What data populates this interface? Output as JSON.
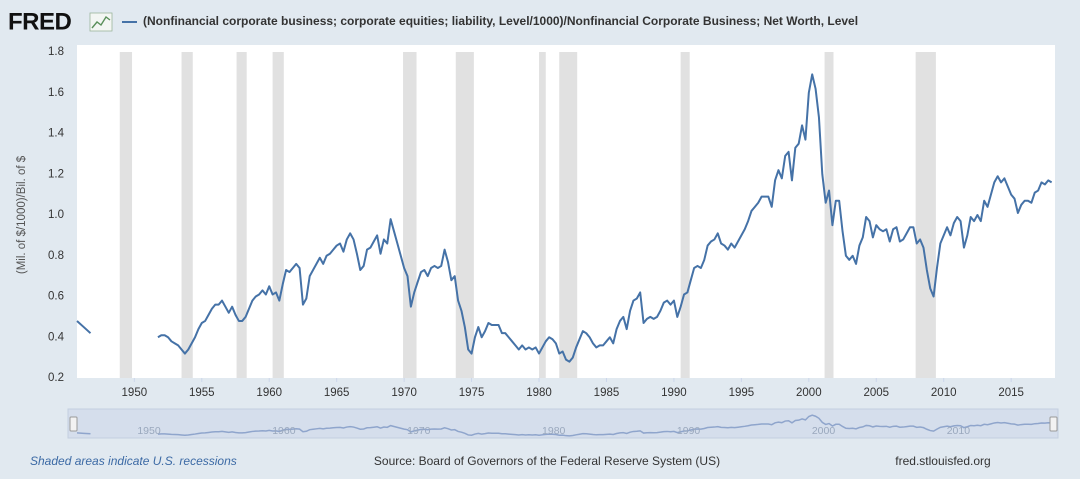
{
  "chart_data": {
    "type": "line",
    "brand": "FRED",
    "ylabel": "(Mil. of $/1000)/Bil. of $",
    "note": "Shaded areas indicate U.S. recessions",
    "source": "Source: Board of Governors of the Federal Reserve System (US)",
    "url": "fred.stlouisfed.org",
    "xlim": [
      1945.75,
      2018.25
    ],
    "ylim": [
      0.2,
      1.8
    ],
    "xticks": [
      1950,
      1955,
      1960,
      1965,
      1970,
      1975,
      1980,
      1985,
      1990,
      1995,
      2000,
      2005,
      2010,
      2015
    ],
    "yticks": [
      0.2,
      0.4,
      0.6,
      0.8,
      {
        "value": 1,
        "label": "1.0"
      },
      1.2,
      1.4,
      1.6,
      1.8
    ],
    "grid": false,
    "navigator_ticks": [
      1950,
      1960,
      1970,
      1980,
      1990,
      2000,
      2010
    ],
    "recession_color": "#e1e1e1",
    "recessions": [
      [
        1948.92,
        1949.83
      ],
      [
        1953.5,
        1954.33
      ],
      [
        1957.58,
        1958.33
      ],
      [
        1960.25,
        1961.08
      ],
      [
        1969.92,
        1970.92
      ],
      [
        1973.83,
        1975.17
      ],
      [
        1980.0,
        1980.5
      ],
      [
        1981.5,
        1982.83
      ],
      [
        1990.5,
        1991.17
      ],
      [
        2001.17,
        2001.83
      ],
      [
        2007.92,
        2009.42
      ]
    ],
    "x": [
      1945.75,
      1946.25,
      1946.75,
      1949,
      1951.75,
      1952,
      1952.25,
      1952.5,
      1952.75,
      1953,
      1953.25,
      1953.5,
      1953.75,
      1954,
      1954.25,
      1954.5,
      1954.75,
      1955,
      1955.25,
      1955.5,
      1955.75,
      1956,
      1956.25,
      1956.5,
      1956.75,
      1957,
      1957.25,
      1957.5,
      1957.75,
      1958,
      1958.25,
      1958.5,
      1958.75,
      1959,
      1959.25,
      1959.5,
      1959.75,
      1960,
      1960.25,
      1960.5,
      1960.75,
      1961,
      1961.25,
      1961.5,
      1961.75,
      1962,
      1962.25,
      1962.5,
      1962.75,
      1963,
      1963.25,
      1963.5,
      1963.75,
      1964,
      1964.25,
      1964.5,
      1964.75,
      1965,
      1965.25,
      1965.5,
      1965.75,
      1966,
      1966.25,
      1966.5,
      1966.75,
      1967,
      1967.25,
      1967.5,
      1967.75,
      1968,
      1968.25,
      1968.5,
      1968.75,
      1969,
      1969.25,
      1969.5,
      1969.75,
      1970,
      1970.25,
      1970.5,
      1970.75,
      1971,
      1971.25,
      1971.5,
      1971.75,
      1972,
      1972.25,
      1972.5,
      1972.75,
      1973,
      1973.25,
      1973.5,
      1973.75,
      1974,
      1974.25,
      1974.5,
      1974.75,
      1975,
      1975.25,
      1975.5,
      1975.75,
      1976,
      1976.25,
      1976.5,
      1976.75,
      1977,
      1977.25,
      1977.5,
      1977.75,
      1978,
      1978.25,
      1978.5,
      1978.75,
      1979,
      1979.25,
      1979.5,
      1979.75,
      1980,
      1980.25,
      1980.5,
      1980.75,
      1981,
      1981.25,
      1981.5,
      1981.75,
      1982,
      1982.25,
      1982.5,
      1982.75,
      1983,
      1983.25,
      1983.5,
      1983.75,
      1984,
      1984.25,
      1984.5,
      1984.75,
      1985,
      1985.25,
      1985.5,
      1985.75,
      1986,
      1986.25,
      1986.5,
      1986.75,
      1987,
      1987.25,
      1987.5,
      1987.75,
      1988,
      1988.25,
      1988.5,
      1988.75,
      1989,
      1989.25,
      1989.5,
      1989.75,
      1990,
      1990.25,
      1990.5,
      1990.75,
      1991,
      1991.25,
      1991.5,
      1991.75,
      1992,
      1992.25,
      1992.5,
      1992.75,
      1993,
      1993.25,
      1993.5,
      1993.75,
      1994,
      1994.25,
      1994.5,
      1994.75,
      1995,
      1995.25,
      1995.5,
      1995.75,
      1996,
      1996.25,
      1996.5,
      1996.75,
      1997,
      1997.25,
      1997.5,
      1997.75,
      1998,
      1998.25,
      1998.5,
      1998.75,
      1999,
      1999.25,
      1999.5,
      1999.75,
      2000,
      2000.25,
      2000.5,
      2000.75,
      2001,
      2001.25,
      2001.5,
      2001.75,
      2002,
      2002.25,
      2002.5,
      2002.75,
      2003,
      2003.25,
      2003.5,
      2003.75,
      2004,
      2004.25,
      2004.5,
      2004.75,
      2005,
      2005.25,
      2005.5,
      2005.75,
      2006,
      2006.25,
      2006.5,
      2006.75,
      2007,
      2007.25,
      2007.5,
      2007.75,
      2008,
      2008.25,
      2008.5,
      2008.75,
      2009,
      2009.25,
      2009.5,
      2009.75,
      2010,
      2010.25,
      2010.5,
      2010.75,
      2011,
      2011.25,
      2011.5,
      2011.75,
      2012,
      2012.25,
      2012.5,
      2012.75,
      2013,
      2013.25,
      2013.5,
      2013.75,
      2014,
      2014.25,
      2014.5,
      2014.75,
      2015,
      2015.25,
      2015.5,
      2015.75,
      2016,
      2016.25,
      2016.5,
      2016.75,
      2017,
      2017.25,
      2017.5,
      2017.75,
      2018
    ],
    "series": [
      {
        "name": "(Nonfinancial corporate business; corporate equities; liability, Level/1000)/Nonfinancial Corporate Business; Net Worth, Level",
        "color": "#4572a7",
        "values": [
          0.48,
          0.45,
          0.42,
          null,
          0.4,
          0.41,
          0.41,
          0.4,
          0.38,
          0.37,
          0.36,
          0.34,
          0.32,
          0.34,
          0.37,
          0.4,
          0.44,
          0.47,
          0.48,
          0.51,
          0.54,
          0.56,
          0.56,
          0.58,
          0.55,
          0.52,
          0.55,
          0.51,
          0.48,
          0.48,
          0.5,
          0.54,
          0.58,
          0.6,
          0.61,
          0.63,
          0.61,
          0.65,
          0.61,
          0.62,
          0.58,
          0.66,
          0.73,
          0.72,
          0.74,
          0.76,
          0.74,
          0.56,
          0.59,
          0.7,
          0.73,
          0.76,
          0.79,
          0.76,
          0.8,
          0.81,
          0.83,
          0.85,
          0.86,
          0.82,
          0.88,
          0.91,
          0.88,
          0.81,
          0.73,
          0.75,
          0.83,
          0.84,
          0.87,
          0.9,
          0.81,
          0.88,
          0.86,
          0.98,
          0.92,
          0.86,
          0.8,
          0.74,
          0.7,
          0.55,
          0.62,
          0.67,
          0.72,
          0.73,
          0.7,
          0.74,
          0.75,
          0.74,
          0.75,
          0.83,
          0.77,
          0.68,
          0.7,
          0.58,
          0.53,
          0.45,
          0.34,
          0.32,
          0.4,
          0.45,
          0.4,
          0.43,
          0.47,
          0.46,
          0.46,
          0.46,
          0.42,
          0.42,
          0.4,
          0.38,
          0.36,
          0.34,
          0.36,
          0.34,
          0.35,
          0.34,
          0.35,
          0.32,
          0.35,
          0.38,
          0.4,
          0.39,
          0.37,
          0.32,
          0.33,
          0.29,
          0.28,
          0.3,
          0.35,
          0.39,
          0.43,
          0.42,
          0.4,
          0.37,
          0.35,
          0.36,
          0.36,
          0.38,
          0.4,
          0.37,
          0.44,
          0.48,
          0.5,
          0.44,
          0.53,
          0.58,
          0.59,
          0.62,
          0.47,
          0.49,
          0.5,
          0.49,
          0.5,
          0.53,
          0.57,
          0.58,
          0.56,
          0.58,
          0.5,
          0.55,
          0.61,
          0.62,
          0.68,
          0.74,
          0.75,
          0.74,
          0.78,
          0.85,
          0.87,
          0.88,
          0.91,
          0.86,
          0.85,
          0.83,
          0.86,
          0.84,
          0.87,
          0.9,
          0.93,
          0.97,
          1.02,
          1.04,
          1.06,
          1.09,
          1.09,
          1.09,
          1.04,
          1.17,
          1.22,
          1.18,
          1.29,
          1.31,
          1.17,
          1.33,
          1.35,
          1.44,
          1.37,
          1.6,
          1.69,
          1.62,
          1.48,
          1.2,
          1.06,
          1.12,
          0.95,
          1.07,
          1.07,
          0.92,
          0.8,
          0.78,
          0.8,
          0.76,
          0.85,
          0.89,
          0.99,
          0.97,
          0.89,
          0.95,
          0.93,
          0.92,
          0.93,
          0.87,
          0.93,
          0.94,
          0.87,
          0.88,
          0.91,
          0.94,
          0.94,
          0.86,
          0.88,
          0.84,
          0.73,
          0.64,
          0.6,
          0.74,
          0.86,
          0.9,
          0.94,
          0.9,
          0.96,
          0.99,
          0.97,
          0.84,
          0.9,
          0.99,
          0.97,
          1.0,
          0.97,
          1.07,
          1.04,
          1.1,
          1.16,
          1.19,
          1.16,
          1.18,
          1.14,
          1.1,
          1.08,
          1.01,
          1.05,
          1.07,
          1.07,
          1.06,
          1.11,
          1.12,
          1.16,
          1.15,
          1.17,
          1.16
        ]
      }
    ]
  }
}
